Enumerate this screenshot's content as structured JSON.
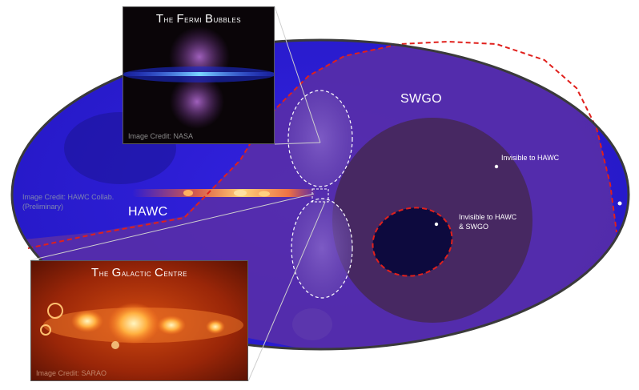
{
  "sky_map": {
    "credit_line1": "Image Credit: HAWC Collab.",
    "credit_line2": "(Preliminary)",
    "hawc_label": "HAWC",
    "swgo_label": "SWGO",
    "invisible_hawc_label": "Invisible to HAWC",
    "invisible_both_line1": "Invisible to HAWC",
    "invisible_both_line2": "& SWGO"
  },
  "fermi_inset": {
    "title_first_big": "T",
    "title_rest_1": "he ",
    "title_second_big": "F",
    "title_rest_2": "ermi ",
    "title_third_big": "B",
    "title_rest_3": "ubbles",
    "credit": "Image Credit: NASA"
  },
  "galactic_inset": {
    "title_first_big": "T",
    "title_rest_1": "he ",
    "title_second_big": "G",
    "title_rest_2": "alactic ",
    "title_third_big": "C",
    "title_rest_3": "entre",
    "credit": "Image Credit: SARAO"
  },
  "colors": {
    "sky_blue": "#2a1fd6",
    "swgo_region": "#5a2fa6",
    "invisible_hawc_region": "#4a2a66",
    "dashed_red": "#e0201c",
    "outline": "#3a3a3a"
  }
}
